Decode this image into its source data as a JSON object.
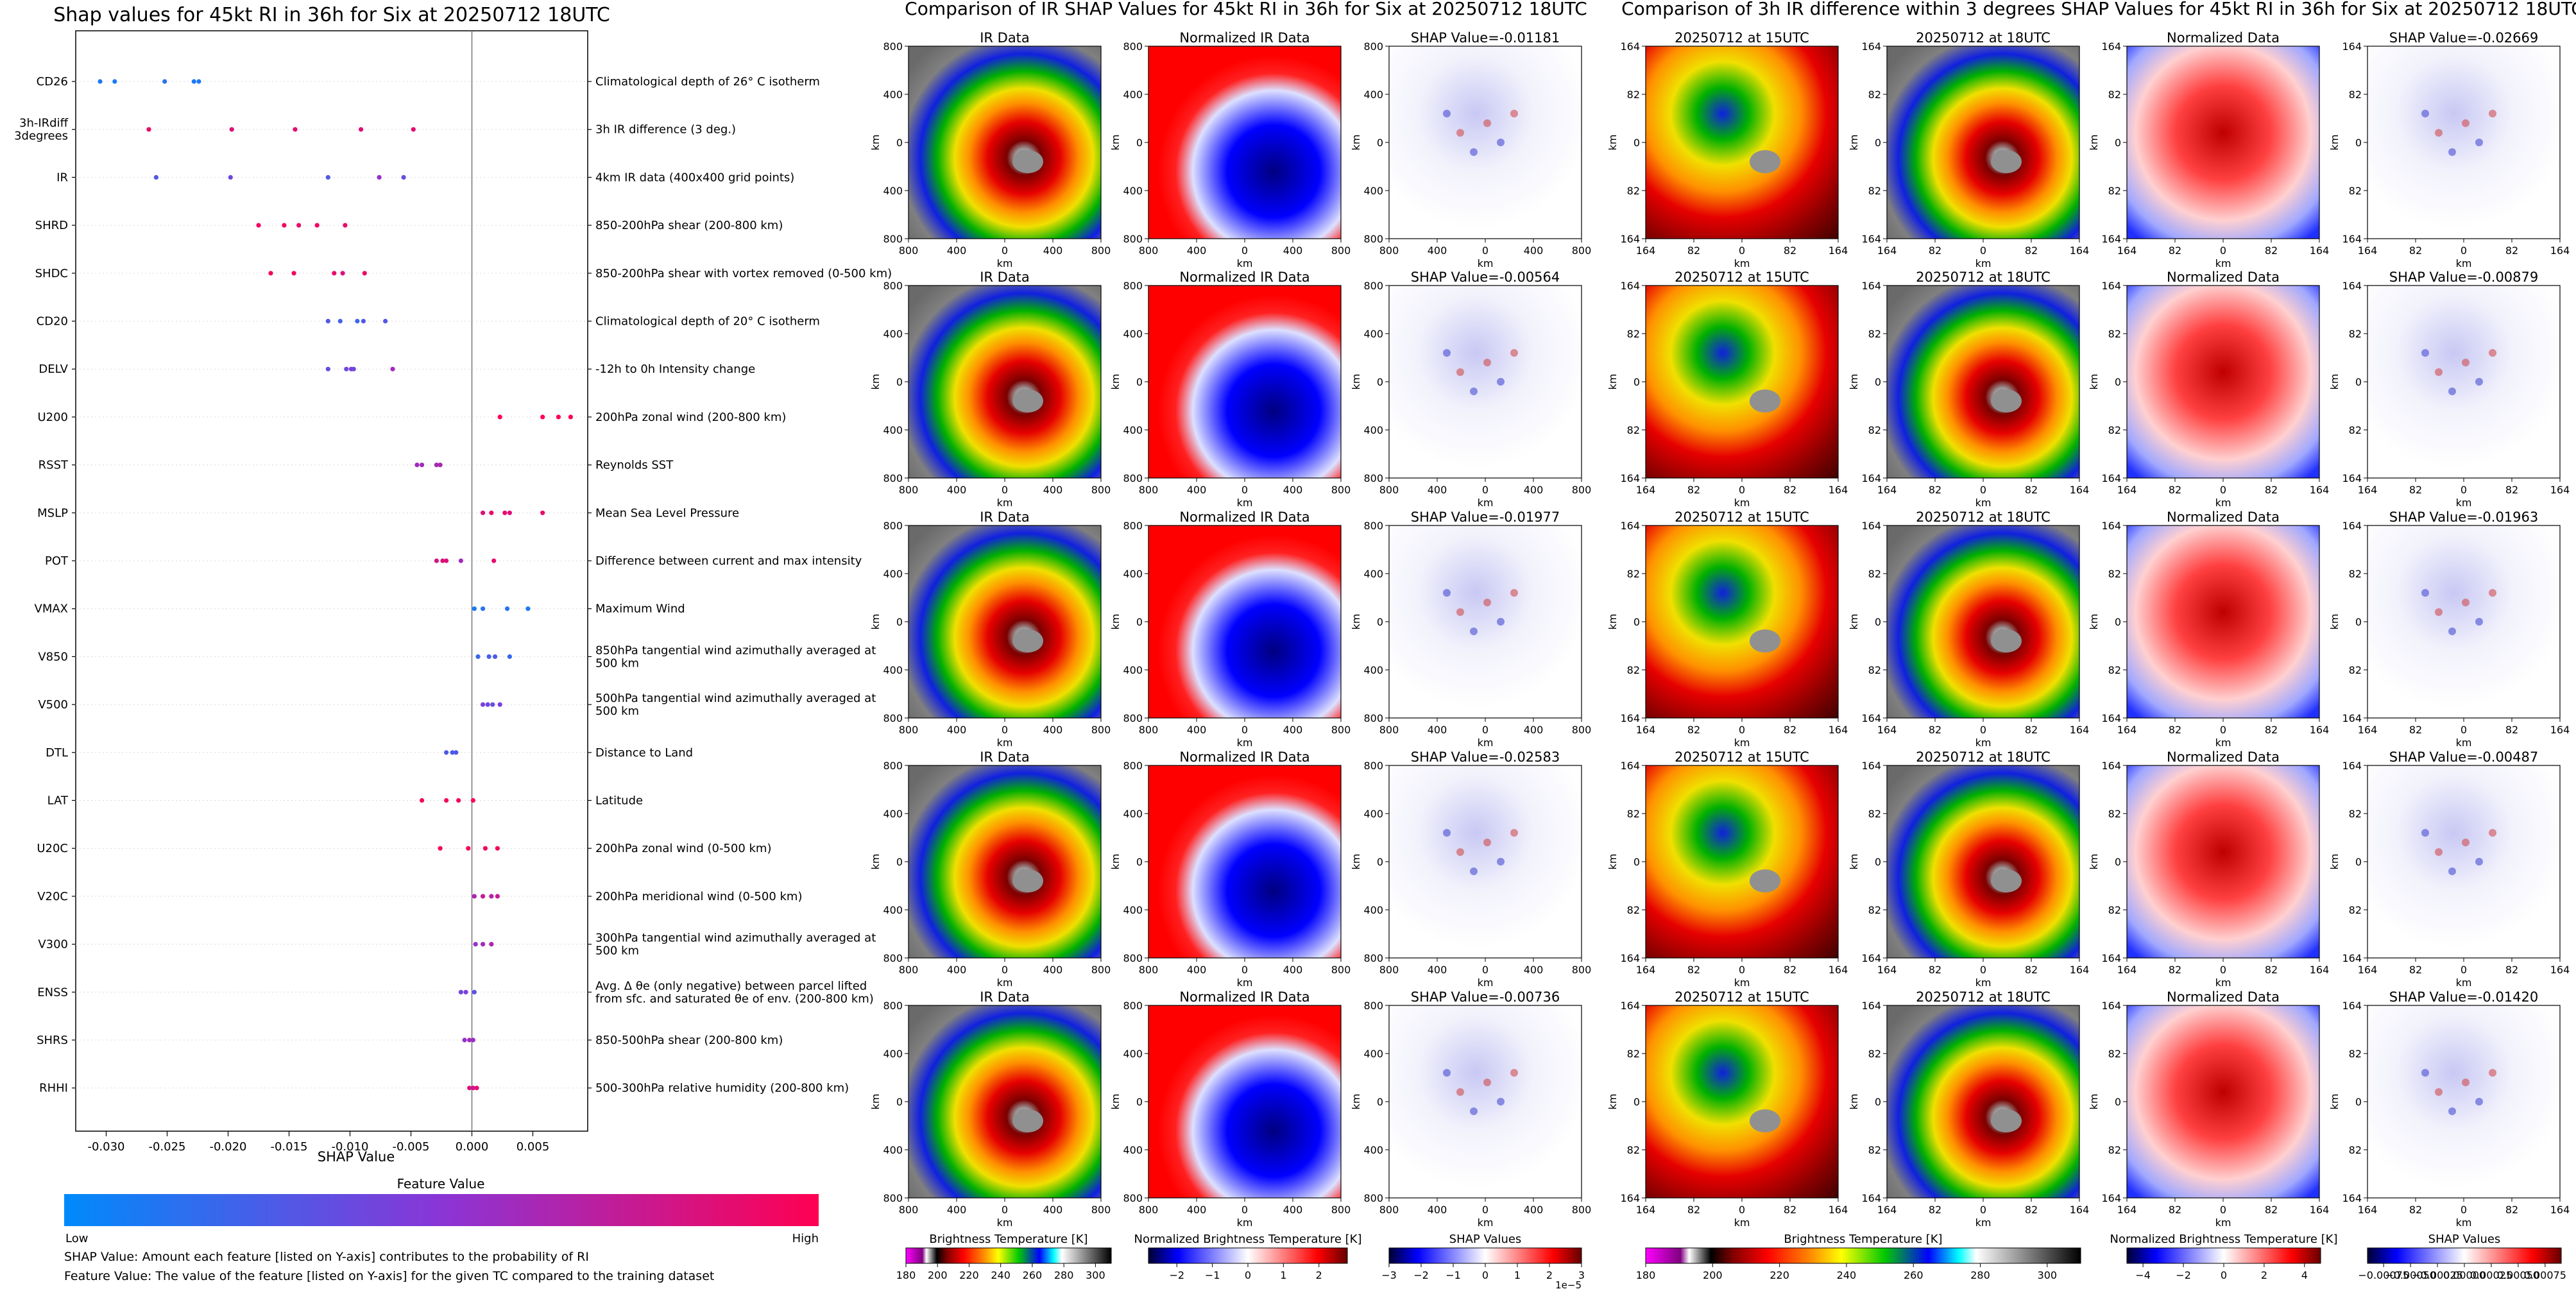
{
  "chart_data": [
    {
      "type": "scatter",
      "title": "Shap values for 45kt RI in 36h for Six at 20250712 18UTC",
      "xlabel": "SHAP Value",
      "xlim": [
        -0.0325,
        0.0095
      ],
      "xticks": [
        "-0.030",
        "-0.025",
        "-0.020",
        "-0.015",
        "-0.010",
        "-0.005",
        "0.000",
        "0.005"
      ],
      "xtick_values": [
        -0.03,
        -0.025,
        -0.02,
        -0.015,
        -0.01,
        -0.005,
        0,
        0.005
      ],
      "colorbar": {
        "title": "Feature Value",
        "low": "Low",
        "high": "High",
        "colors": [
          "#008afb",
          "#8a35d6",
          "#ff0052"
        ]
      },
      "features": [
        {
          "name": "CD26",
          "desc": "Climatological depth of 26° C isotherm",
          "values": [
            -0.0305,
            -0.0293,
            -0.0252,
            -0.0228,
            -0.0224
          ],
          "fv": [
            0.1,
            0.1,
            0.15,
            0.1,
            0.1
          ]
        },
        {
          "name": "3h-IRdiff 3degrees",
          "desc": "3h IR difference (3 deg.)",
          "values": [
            -0.0265,
            -0.0197,
            -0.0145,
            -0.0091,
            -0.0048
          ],
          "fv": [
            0.9,
            0.85,
            0.88,
            0.85,
            0.88
          ]
        },
        {
          "name": "IR",
          "desc": "4km IR data (400x400 grid points)",
          "values": [
            -0.0259,
            -0.0198,
            -0.0118,
            -0.0076,
            -0.0056
          ],
          "fv": [
            0.3,
            0.4,
            0.3,
            0.55,
            0.35
          ]
        },
        {
          "name": "SHRD",
          "desc": "850-200hPa shear (200-800 km)",
          "values": [
            -0.0175,
            -0.0154,
            -0.0142,
            -0.0127,
            -0.0104
          ],
          "fv": [
            0.95,
            0.95,
            0.9,
            0.95,
            0.9
          ]
        },
        {
          "name": "SHDC",
          "desc": "850-200hPa shear with vortex removed (0-500 km)",
          "values": [
            -0.0165,
            -0.0146,
            -0.0113,
            -0.0106,
            -0.0088
          ],
          "fv": [
            0.95,
            0.95,
            0.9,
            0.85,
            0.9
          ]
        },
        {
          "name": "CD20",
          "desc": "Climatological depth of 20° C isotherm",
          "values": [
            -0.0118,
            -0.0108,
            -0.0094,
            -0.0089,
            -0.0071
          ],
          "fv": [
            0.3,
            0.25,
            0.2,
            0.3,
            0.3
          ]
        },
        {
          "name": "DELV",
          "desc": "-12h to 0h Intensity change",
          "values": [
            -0.0118,
            -0.0103,
            -0.0099,
            -0.0097,
            -0.0065
          ],
          "fv": [
            0.35,
            0.4,
            0.45,
            0.4,
            0.6
          ]
        },
        {
          "name": "U200",
          "desc": "200hPa zonal wind (200-800 km)",
          "values": [
            0.0023,
            0.0058,
            0.0071,
            0.0081
          ],
          "fv": [
            1,
            1,
            1,
            1
          ]
        },
        {
          "name": "RSST",
          "desc": "Reynolds SST",
          "values": [
            -0.0045,
            -0.0041,
            -0.0029,
            -0.0026
          ],
          "fv": [
            0.6,
            0.6,
            0.6,
            0.65
          ]
        },
        {
          "name": "MSLP",
          "desc": "Mean Sea Level Pressure",
          "values": [
            0.0009,
            0.0016,
            0.0027,
            0.0031,
            0.0058
          ],
          "fv": [
            0.85,
            0.9,
            0.9,
            0.85,
            0.9
          ]
        },
        {
          "name": "POT",
          "desc": "Difference between current and max intensity",
          "values": [
            -0.0029,
            -0.0024,
            -0.0021,
            -0.0009,
            0.0018
          ],
          "fv": [
            0.8,
            0.85,
            0.85,
            0.6,
            0.9
          ]
        },
        {
          "name": "VMAX",
          "desc": "Maximum Wind",
          "values": [
            0.0002,
            0.0009,
            0.0029,
            0.0046
          ],
          "fv": [
            0.1,
            0.15,
            0.15,
            0.1
          ]
        },
        {
          "name": "V850",
          "desc": "850hPa tangential wind azimuthally averaged at 500 km",
          "values": [
            0.0005,
            0.0014,
            0.0019,
            0.0031
          ],
          "fv": [
            0.2,
            0.25,
            0.3,
            0.2
          ]
        },
        {
          "name": "V500",
          "desc": "500hPa tangential wind azimuthally averaged at 500 km",
          "values": [
            0.0009,
            0.0013,
            0.0017,
            0.0023
          ],
          "fv": [
            0.45,
            0.4,
            0.35,
            0.45
          ]
        },
        {
          "name": "DTL",
          "desc": "Distance to Land",
          "values": [
            -0.0021,
            -0.0016,
            -0.0013
          ],
          "fv": [
            0.3,
            0.25,
            0.3
          ]
        },
        {
          "name": "LAT",
          "desc": "Latitude",
          "values": [
            -0.0041,
            -0.0021,
            -0.0011,
            0.0001
          ],
          "fv": [
            0.95,
            0.95,
            0.95,
            1
          ]
        },
        {
          "name": "U20C",
          "desc": "200hPa zonal wind (0-500 km)",
          "values": [
            -0.0026,
            -0.0003,
            0.0011,
            0.0021
          ],
          "fv": [
            0.95,
            0.95,
            0.95,
            0.95
          ]
        },
        {
          "name": "V20C",
          "desc": "200hPa meridional wind (0-500 km)",
          "values": [
            0.0002,
            0.0009,
            0.0016,
            0.0021
          ],
          "fv": [
            0.65,
            0.75,
            0.7,
            0.75
          ]
        },
        {
          "name": "V300",
          "desc": "300hPa tangential wind azimuthally averaged at 500 km",
          "values": [
            0.0003,
            0.0009,
            0.0016
          ],
          "fv": [
            0.55,
            0.6,
            0.65
          ]
        },
        {
          "name": "ENSS",
          "desc": "Avg. Δ θe (only negative) between parcel lifted from sfc. and saturated θe of env. (200-800 km)",
          "values": [
            -0.0009,
            -0.0005,
            0.0002
          ],
          "fv": [
            0.4,
            0.45,
            0.35
          ]
        },
        {
          "name": "SHRS",
          "desc": "850-500hPa shear (200-800 km)",
          "values": [
            -0.0006,
            -0.0002,
            0.0001
          ],
          "fv": [
            0.55,
            0.6,
            0.55
          ]
        },
        {
          "name": "RHHI",
          "desc": "500-300hPa relative humidity (200-800 km)",
          "values": [
            -0.0002,
            0.0001,
            0.0004
          ],
          "fv": [
            0.85,
            0.8,
            0.85
          ]
        }
      ]
    },
    {
      "type": "heatmap",
      "title": "Comparison of IR SHAP Values for 45kt RI in 36h for Six at 20250712 18UTC",
      "columns": [
        {
          "title": "IR Data",
          "cmap": "ir",
          "ticks": [
            "800",
            "400",
            "0",
            "400",
            "800"
          ]
        },
        {
          "title": "Normalized IR Data",
          "cmap": "norm",
          "ticks": [
            "800",
            "400",
            "0",
            "400",
            "800"
          ]
        },
        {
          "title": "SHAP",
          "cmap": "shap",
          "ticks": [
            "800",
            "400",
            "0",
            "400",
            "800"
          ]
        }
      ],
      "axis_label": "km",
      "shap_values": [
        "SHAP Value=-0.01181",
        "SHAP Value=-0.00564",
        "SHAP Value=-0.01977",
        "SHAP Value=-0.02583",
        "SHAP Value=-0.00736"
      ],
      "colorbars": [
        {
          "title": "Brightness Temperature [K]",
          "ticks": [
            "180",
            "200",
            "220",
            "240",
            "260",
            "280",
            "300"
          ],
          "range": [
            180,
            310
          ]
        },
        {
          "title": "Normalized Brightness Temperature [K]",
          "ticks": [
            "−2",
            "−1",
            "0",
            "1",
            "2"
          ],
          "range": [
            -2.8,
            2.8
          ]
        },
        {
          "title": "SHAP Values",
          "ticks": [
            "−3",
            "−2",
            "−1",
            "0",
            "1",
            "2",
            "3"
          ],
          "range": [
            -3,
            3
          ],
          "offset": "1e−5"
        }
      ]
    },
    {
      "type": "heatmap",
      "title": "Comparison of 3h IR difference within 3 degrees SHAP Values for 45kt RI in 36h for Six at 20250712 18UTC",
      "columns": [
        {
          "title": "20250712 at 15UTC",
          "cmap": "ir",
          "ticks": [
            "164",
            "82",
            "0",
            "82",
            "164"
          ]
        },
        {
          "title": "20250712 at 18UTC",
          "cmap": "ir",
          "ticks": [
            "164",
            "82",
            "0",
            "82",
            "164"
          ]
        },
        {
          "title": "Normalized Data",
          "cmap": "norm",
          "ticks": [
            "164",
            "82",
            "0",
            "82",
            "164"
          ]
        },
        {
          "title": "SHAP",
          "cmap": "shap",
          "ticks": [
            "164",
            "82",
            "0",
            "82",
            "164"
          ]
        }
      ],
      "axis_label": "km",
      "shap_values": [
        "SHAP Value=-0.02669",
        "SHAP Value=-0.00879",
        "SHAP Value=-0.01963",
        "SHAP Value=-0.00487",
        "SHAP Value=-0.01420"
      ],
      "colorbars": [
        {
          "title": "Brightness Temperature [K]",
          "ticks": [
            "180",
            "200",
            "220",
            "240",
            "260",
            "280",
            "300"
          ],
          "range": [
            180,
            310
          ]
        },
        {
          "title": "Normalized Brightness Temperature [K]",
          "ticks": [
            "−4",
            "−2",
            "0",
            "2",
            "4"
          ],
          "range": [
            -4.8,
            4.8
          ]
        },
        {
          "title": "SHAP Values",
          "ticks": [
            "−0.00075",
            "−0.00050",
            "−0.00025",
            "0.00000",
            "0.00025",
            "0.00050",
            "0.00075"
          ],
          "range": [
            -0.0009,
            0.0009
          ]
        }
      ]
    }
  ],
  "footer": {
    "line1": "SHAP Value: Amount each feature [listed on Y-axis] contributes to the probability of RI",
    "line2": "Feature Value: The value of the feature [listed on Y-axis] for the given TC compared to the training dataset"
  }
}
